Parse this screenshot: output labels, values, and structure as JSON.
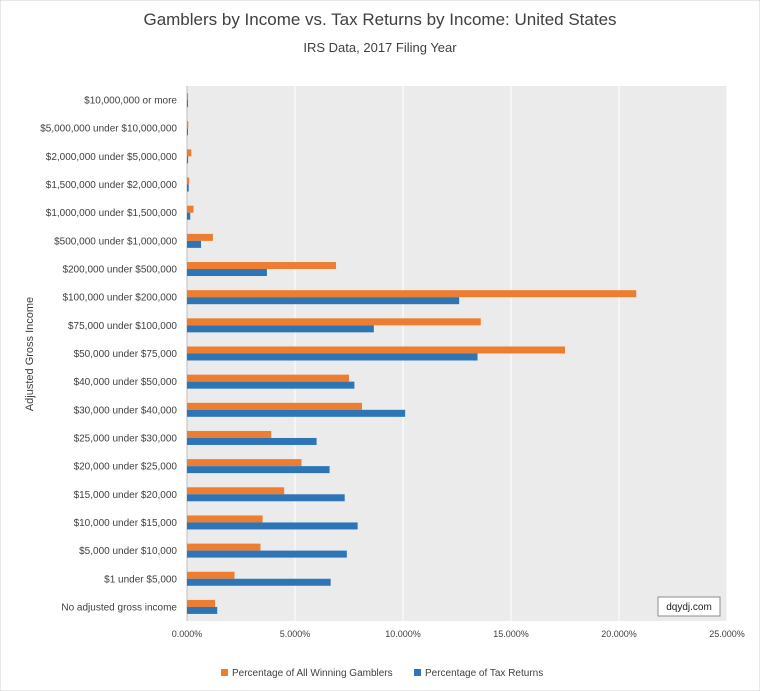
{
  "chart_data": {
    "type": "bar",
    "orientation": "horizontal",
    "title": "Gamblers by Income vs. Tax Returns by Income: United States",
    "subtitle": "IRS Data, 2017 Filing Year",
    "ylabel": "Adjusted Gross Income",
    "xlabel": "",
    "xlim": [
      0,
      25
    ],
    "x_ticks": [
      "0.000%",
      "5.000%",
      "10.000%",
      "15.000%",
      "20.000%",
      "25.000%"
    ],
    "grid": true,
    "legend_position": "bottom",
    "watermark": "dqydj.com",
    "categories": [
      "$10,000,000 or more",
      "$5,000,000 under $10,000,000",
      "$2,000,000 under $5,000,000",
      "$1,500,000 under $2,000,000",
      "$1,000,000 under $1,500,000",
      "$500,000 under $1,000,000",
      "$200,000 under $500,000",
      "$100,000 under $200,000",
      "$75,000 under $100,000",
      "$50,000 under $75,000",
      "$40,000 under $50,000",
      "$30,000 under $40,000",
      "$25,000 under $30,000",
      "$20,000 under $25,000",
      "$15,000 under $20,000",
      "$10,000 under $15,000",
      "$5,000 under $10,000",
      "$1 under $5,000",
      "No adjusted gross income"
    ],
    "series": [
      {
        "name": "Percentage of All Winning Gamblers",
        "color": "#ED7D31",
        "values": [
          0.05,
          0.06,
          0.2,
          0.1,
          0.3,
          1.2,
          6.9,
          20.8,
          13.6,
          17.5,
          7.5,
          8.1,
          3.9,
          5.3,
          4.5,
          3.5,
          3.4,
          2.2,
          1.3
        ]
      },
      {
        "name": "Percentage of Tax Returns",
        "color": "#2E75B6",
        "values": [
          0.02,
          0.03,
          0.05,
          0.08,
          0.15,
          0.65,
          3.7,
          12.6,
          8.65,
          13.45,
          7.75,
          10.1,
          6.0,
          6.6,
          7.3,
          7.9,
          7.4,
          6.65,
          1.4
        ]
      }
    ]
  }
}
